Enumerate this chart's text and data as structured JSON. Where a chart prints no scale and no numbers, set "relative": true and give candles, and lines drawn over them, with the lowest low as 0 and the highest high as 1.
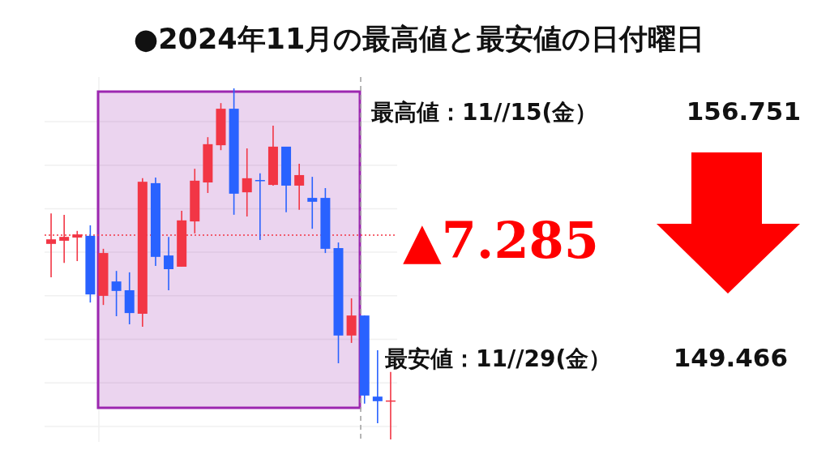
{
  "chart_data": {
    "type": "candlestick",
    "title": "●2024年11月の最高値と最安値の日付曜日",
    "relative": true,
    "grid": true,
    "categories": [
      null,
      null,
      null,
      null,
      null,
      null,
      null,
      null,
      null,
      null,
      null,
      null,
      null,
      null,
      null,
      null,
      null,
      null,
      null,
      null,
      null,
      null,
      null,
      null,
      null,
      null,
      null
    ],
    "ohlc": [
      [
        0.557,
        0.644,
        0.462,
        0.57
      ],
      [
        0.566,
        0.64,
        0.503,
        0.577
      ],
      [
        0.575,
        0.594,
        0.508,
        0.584
      ],
      [
        0.58,
        0.61,
        0.39,
        0.413
      ],
      [
        0.409,
        0.543,
        0.383,
        0.531
      ],
      [
        0.45,
        0.48,
        0.351,
        0.423
      ],
      [
        0.425,
        0.476,
        0.328,
        0.36
      ],
      [
        0.358,
        0.744,
        0.321,
        0.734
      ],
      [
        0.73,
        0.746,
        0.494,
        0.52
      ],
      [
        0.524,
        0.577,
        0.425,
        0.485
      ],
      [
        0.492,
        0.651,
        0.492,
        0.624
      ],
      [
        0.621,
        0.771,
        0.587,
        0.737
      ],
      [
        0.732,
        0.861,
        0.702,
        0.841
      ],
      [
        0.838,
        0.958,
        0.824,
        0.942
      ],
      [
        0.942,
        1.0,
        0.64,
        0.7
      ],
      [
        0.704,
        0.829,
        0.635,
        0.744
      ],
      [
        0.739,
        0.758,
        0.568,
        0.737
      ],
      [
        0.725,
        0.894,
        0.723,
        0.834
      ],
      [
        0.834,
        0.834,
        0.647,
        0.723
      ],
      [
        0.723,
        0.785,
        0.654,
        0.753
      ],
      [
        0.688,
        0.748,
        0.6,
        0.677
      ],
      [
        0.688,
        0.716,
        0.531,
        0.543
      ],
      [
        0.545,
        0.561,
        0.217,
        0.296
      ],
      [
        0.296,
        0.402,
        0.275,
        0.353
      ],
      [
        0.353,
        0.353,
        0.102,
        0.125
      ],
      [
        0.122,
        0.254,
        0.046,
        0.109
      ],
      [
        0.109,
        0.192,
        0.0,
        0.111
      ]
    ],
    "colors": [
      "#f23645",
      "#f23645",
      "#f23645",
      "#2962ff",
      "#f23645",
      "#2962ff",
      "#2962ff",
      "#f23645",
      "#2962ff",
      "#2962ff",
      "#f23645",
      "#f23645",
      "#f23645",
      "#f23645",
      "#2962ff",
      "#f23645",
      "#2962ff",
      "#f23645",
      "#2962ff",
      "#f23645",
      "#2962ff",
      "#2962ff",
      "#2962ff",
      "#f23645",
      "#2962ff",
      "#2962ff",
      "#f23645"
    ],
    "ref_lines": [
      {
        "axis": "y",
        "value": 0.582,
        "label": null,
        "color": "#f23645",
        "line_style": "dotted"
      }
    ],
    "annotations": [
      "最高値：11//15(金）",
      "156.751",
      "▲7.285",
      "最安値：11//29(金）",
      "149.466"
    ]
  }
}
